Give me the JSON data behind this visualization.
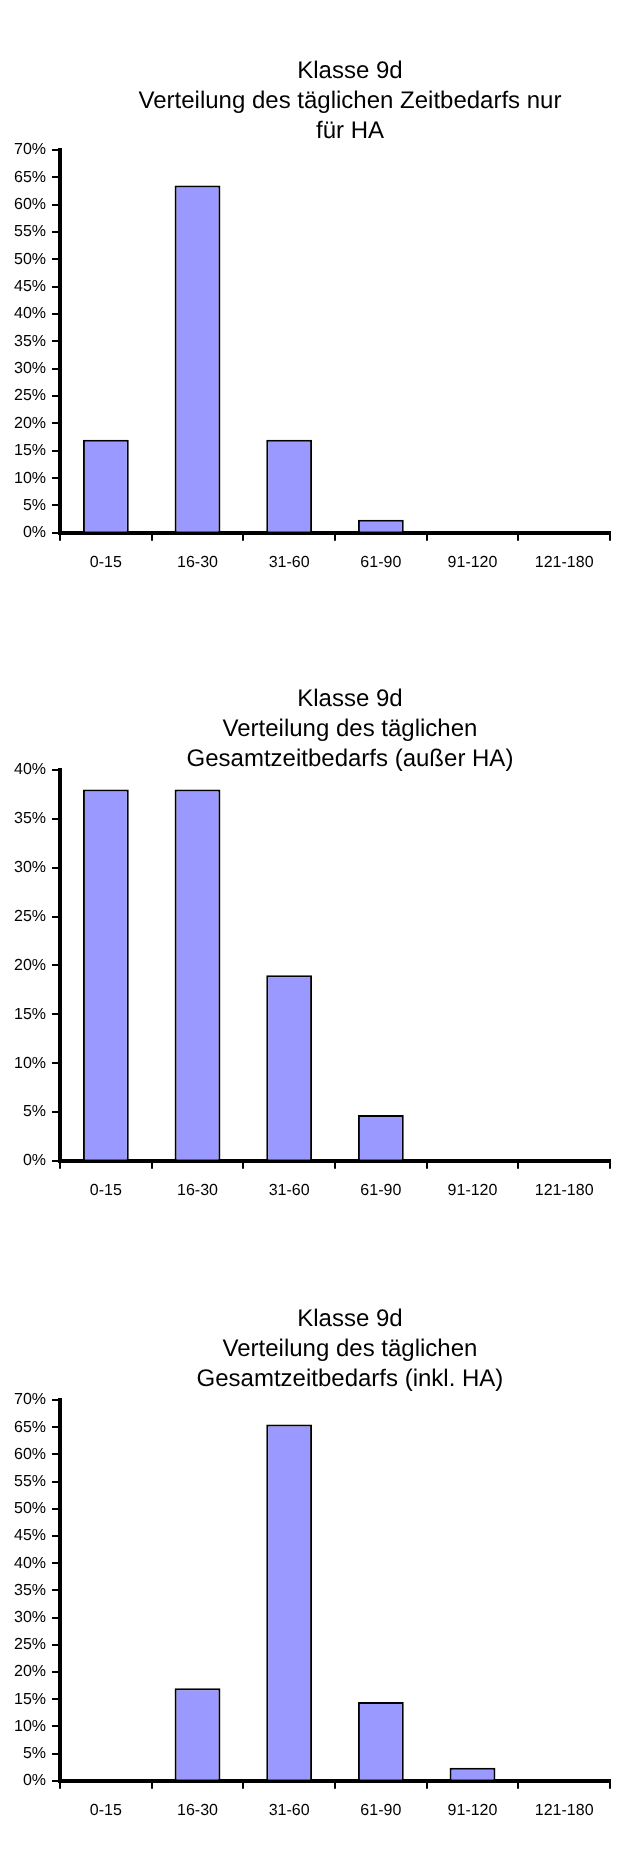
{
  "chart_data": [
    {
      "type": "bar",
      "title": "Klasse 9d\nVerteilung des täglichen Zeitbedarfs nur für  HA",
      "categories": [
        "0-15",
        "16-30",
        "31-60",
        "61-90",
        "91-120",
        "121-180"
      ],
      "values": [
        17,
        63.5,
        17,
        2.4,
        0,
        0
      ],
      "color": "#9999ff",
      "ylim": [
        0,
        70
      ],
      "yticks": [
        {
          "value": 0,
          "label": "0%"
        },
        {
          "value": 5,
          "label": "5%"
        },
        {
          "value": 10,
          "label": "10%"
        },
        {
          "value": 15,
          "label": "15%"
        },
        {
          "value": 20,
          "label": "20%"
        },
        {
          "value": 25,
          "label": "25%"
        },
        {
          "value": 30,
          "label": "30%"
        },
        {
          "value": 35,
          "label": "35%"
        },
        {
          "value": 40,
          "label": "40%"
        },
        {
          "value": 45,
          "label": "45%"
        },
        {
          "value": 50,
          "label": "50%"
        },
        {
          "value": 55,
          "label": "55%"
        },
        {
          "value": 60,
          "label": "60%"
        },
        {
          "value": 65,
          "label": "65%"
        },
        {
          "value": 70,
          "label": "70%"
        }
      ],
      "grid": false,
      "legend": false
    },
    {
      "type": "bar",
      "title": "Klasse 9d\nVerteilung des täglichen Gesamtzeitbedarfs (außer HA)",
      "categories": [
        "0-15",
        "16-30",
        "31-60",
        "61-90",
        "91-120",
        "121-180"
      ],
      "values": [
        38,
        38,
        19,
        4.7,
        0,
        0
      ],
      "color": "#9999ff",
      "ylim": [
        0,
        40
      ],
      "yticks": [
        {
          "value": 0,
          "label": "0%"
        },
        {
          "value": 5,
          "label": "5%"
        },
        {
          "value": 10,
          "label": "10%"
        },
        {
          "value": 15,
          "label": "15%"
        },
        {
          "value": 20,
          "label": "20%"
        },
        {
          "value": 25,
          "label": "25%"
        },
        {
          "value": 30,
          "label": "30%"
        },
        {
          "value": 35,
          "label": "35%"
        },
        {
          "value": 40,
          "label": "40%"
        }
      ],
      "grid": false,
      "legend": false
    },
    {
      "type": "bar",
      "title": "Klasse 9d\nVerteilung des täglichen Gesamtzeitbedarfs (inkl. HA)",
      "categories": [
        "0-15",
        "16-30",
        "31-60",
        "61-90",
        "91-120",
        "121-180"
      ],
      "values": [
        0,
        17,
        65.5,
        14.5,
        2.4,
        0
      ],
      "color": "#9999ff",
      "ylim": [
        0,
        70
      ],
      "yticks": [
        {
          "value": 0,
          "label": "0%"
        },
        {
          "value": 5,
          "label": "5%"
        },
        {
          "value": 10,
          "label": "10%"
        },
        {
          "value": 15,
          "label": "15%"
        },
        {
          "value": 20,
          "label": "20%"
        },
        {
          "value": 25,
          "label": "25%"
        },
        {
          "value": 30,
          "label": "30%"
        },
        {
          "value": 35,
          "label": "35%"
        },
        {
          "value": 40,
          "label": "40%"
        },
        {
          "value": 45,
          "label": "45%"
        },
        {
          "value": 50,
          "label": "50%"
        },
        {
          "value": 55,
          "label": "55%"
        },
        {
          "value": 60,
          "label": "60%"
        },
        {
          "value": 65,
          "label": "65%"
        },
        {
          "value": 70,
          "label": "70%"
        }
      ],
      "grid": false,
      "legend": false
    }
  ]
}
